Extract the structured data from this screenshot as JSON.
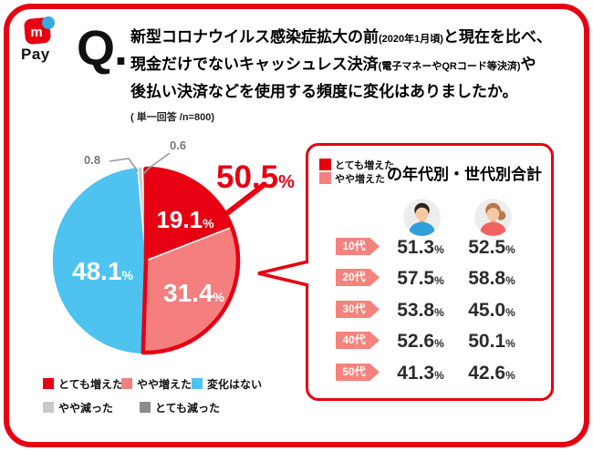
{
  "brand": {
    "logo_letter": "m",
    "logo_product": "Pay"
  },
  "question": {
    "mark": "Q.",
    "line1": {
      "main": "新型コロナウイルス感染症拡大の前",
      "small": "(2020年1月頃)",
      "tail": "と現在を比べ、"
    },
    "line2": {
      "main": "現金だけでないキャッシュレス決済",
      "small": "(電子マネーやQRコード等決済)",
      "tail": "や"
    },
    "line3": "後払い決済などを使用する頻度に変化はありましたか。",
    "note": "( 単一回答 /n=800)"
  },
  "labels": {
    "percent": "%"
  },
  "colors": {
    "brand_red": "#e60012",
    "pink": "#f57e7e",
    "blue": "#4ec3f0",
    "gray_light": "#c9c9c9",
    "gray_dark": "#8b8b8b",
    "badge_pink": "#f5827d"
  },
  "chart_data": [
    {
      "type": "pie",
      "start_angle_deg": -90,
      "direction": "clockwise",
      "unit": "%",
      "segments": [
        {
          "label": "とても増えた",
          "value": 19.1,
          "color": "#e60012"
        },
        {
          "label": "やや増えた",
          "value": 31.4,
          "color": "#f57e7e"
        },
        {
          "label": "変化はない",
          "value": 48.1,
          "color": "#4ec3f0"
        },
        {
          "label": "やや減った",
          "value": 0.8,
          "color": "#c9c9c9"
        },
        {
          "label": "とても減った",
          "value": 0.6,
          "color": "#8b8b8b"
        }
      ],
      "highlight": {
        "value": 50.5,
        "segment_count": 2
      }
    },
    {
      "type": "table",
      "legend": [
        "とても増えた",
        "やや増えた"
      ],
      "title": "の年代別・世代別合計",
      "columns": [
        "年代",
        "男性",
        "女性"
      ],
      "rows": [
        {
          "age": "10代",
          "male": "51.3",
          "female": "52.5"
        },
        {
          "age": "20代",
          "male": "57.5",
          "female": "58.8"
        },
        {
          "age": "30代",
          "male": "53.8",
          "female": "45.0"
        },
        {
          "age": "40代",
          "male": "52.6",
          "female": "50.1"
        },
        {
          "age": "50代",
          "male": "41.3",
          "female": "42.6"
        }
      ]
    }
  ]
}
